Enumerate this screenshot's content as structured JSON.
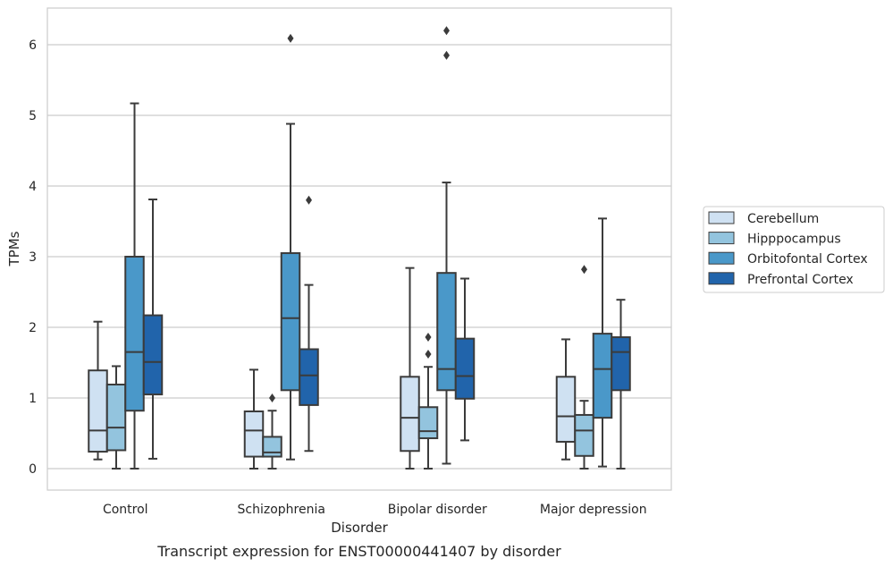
{
  "caption": "Transcript expression for ENST00000441407 by disorder",
  "colors": {
    "Cerebellum": "#cfe1f2",
    "Hipppocampus": "#93c4de",
    "Orbitofontal Cortex": "#4a98c9",
    "Prefrontal Cortex": "#2164ab",
    "edge": "#3b3b3b",
    "grid": "#cccccc",
    "frame": "#cccccc"
  },
  "chart_data": {
    "type": "box",
    "title": "",
    "xlabel": "Disorder",
    "ylabel": "TPMs",
    "ylim": [
      -0.3,
      6.5
    ],
    "yticks": [
      0,
      1,
      2,
      3,
      4,
      5,
      6
    ],
    "grid": true,
    "legend_position": "right",
    "categories": [
      "Control",
      "Schizophrenia",
      "Bipolar disorder",
      "Major depression"
    ],
    "series": [
      {
        "name": "Cerebellum",
        "boxes": [
          {
            "whislo": 0.13,
            "q1": 0.24,
            "med": 0.54,
            "q3": 1.39,
            "whishi": 2.08,
            "fliers": []
          },
          {
            "whislo": 0.0,
            "q1": 0.17,
            "med": 0.54,
            "q3": 0.81,
            "whishi": 1.4,
            "fliers": []
          },
          {
            "whislo": 0.0,
            "q1": 0.25,
            "med": 0.72,
            "q3": 1.3,
            "whishi": 2.84,
            "fliers": []
          },
          {
            "whislo": 0.13,
            "q1": 0.38,
            "med": 0.74,
            "q3": 1.3,
            "whishi": 1.83,
            "fliers": []
          }
        ]
      },
      {
        "name": "Hipppocampus",
        "boxes": [
          {
            "whislo": 0.0,
            "q1": 0.26,
            "med": 0.58,
            "q3": 1.19,
            "whishi": 1.45,
            "fliers": []
          },
          {
            "whislo": 0.0,
            "q1": 0.17,
            "med": 0.23,
            "q3": 0.45,
            "whishi": 0.82,
            "fliers": [
              1.0
            ]
          },
          {
            "whislo": 0.0,
            "q1": 0.43,
            "med": 0.53,
            "q3": 0.87,
            "whishi": 1.44,
            "fliers": [
              1.62,
              1.86
            ]
          },
          {
            "whislo": 0.0,
            "q1": 0.18,
            "med": 0.54,
            "q3": 0.76,
            "whishi": 0.96,
            "fliers": [
              2.82
            ]
          }
        ]
      },
      {
        "name": "Orbitofontal Cortex",
        "boxes": [
          {
            "whislo": 0.0,
            "q1": 0.82,
            "med": 1.65,
            "q3": 3.0,
            "whishi": 5.17,
            "fliers": []
          },
          {
            "whislo": 0.13,
            "q1": 1.11,
            "med": 2.13,
            "q3": 3.05,
            "whishi": 4.88,
            "fliers": [
              6.09
            ]
          },
          {
            "whislo": 0.07,
            "q1": 1.11,
            "med": 1.41,
            "q3": 2.77,
            "whishi": 4.05,
            "fliers": [
              5.85,
              6.2
            ]
          },
          {
            "whislo": 0.03,
            "q1": 0.72,
            "med": 1.41,
            "q3": 1.91,
            "whishi": 3.54,
            "fliers": []
          }
        ]
      },
      {
        "name": "Prefrontal Cortex",
        "boxes": [
          {
            "whislo": 0.14,
            "q1": 1.05,
            "med": 1.51,
            "q3": 2.17,
            "whishi": 3.81,
            "fliers": []
          },
          {
            "whislo": 0.25,
            "q1": 0.9,
            "med": 1.32,
            "q3": 1.69,
            "whishi": 2.6,
            "fliers": [
              3.8
            ]
          },
          {
            "whislo": 0.4,
            "q1": 0.99,
            "med": 1.31,
            "q3": 1.84,
            "whishi": 2.69,
            "fliers": []
          },
          {
            "whislo": 0.0,
            "q1": 1.11,
            "med": 1.65,
            "q3": 1.86,
            "whishi": 2.39,
            "fliers": []
          }
        ]
      }
    ]
  }
}
